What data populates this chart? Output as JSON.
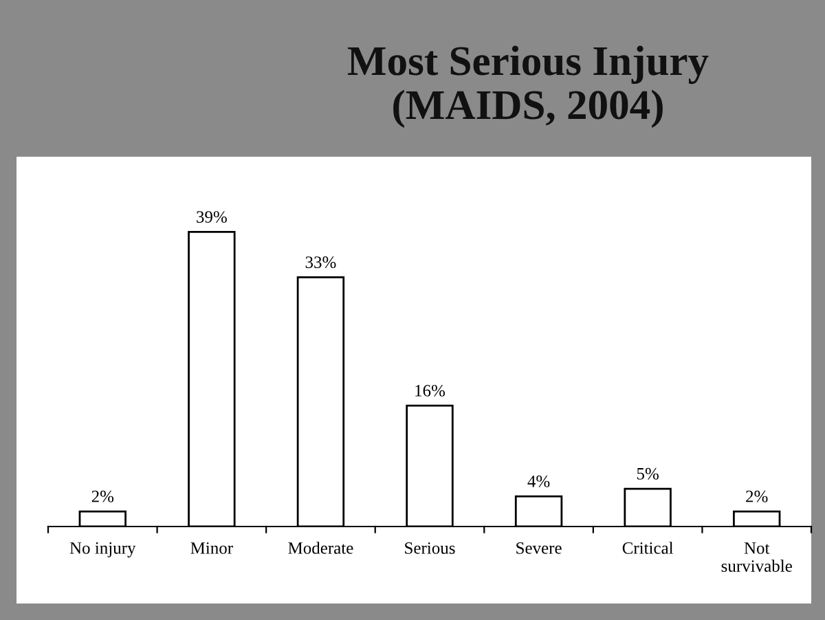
{
  "chart_data": {
    "type": "bar",
    "title": "Most Serious Injury\n(MAIDS, 2004)",
    "categories": [
      "No injury",
      "Minor",
      "Moderate",
      "Serious",
      "Severe",
      "Critical",
      "Not\nsurvivable"
    ],
    "values": [
      2,
      39,
      33,
      16,
      4,
      5,
      2
    ],
    "value_labels": [
      "2%",
      "39%",
      "33%",
      "16%",
      "4%",
      "5%",
      "2%"
    ],
    "color": "#ffffff"
  }
}
